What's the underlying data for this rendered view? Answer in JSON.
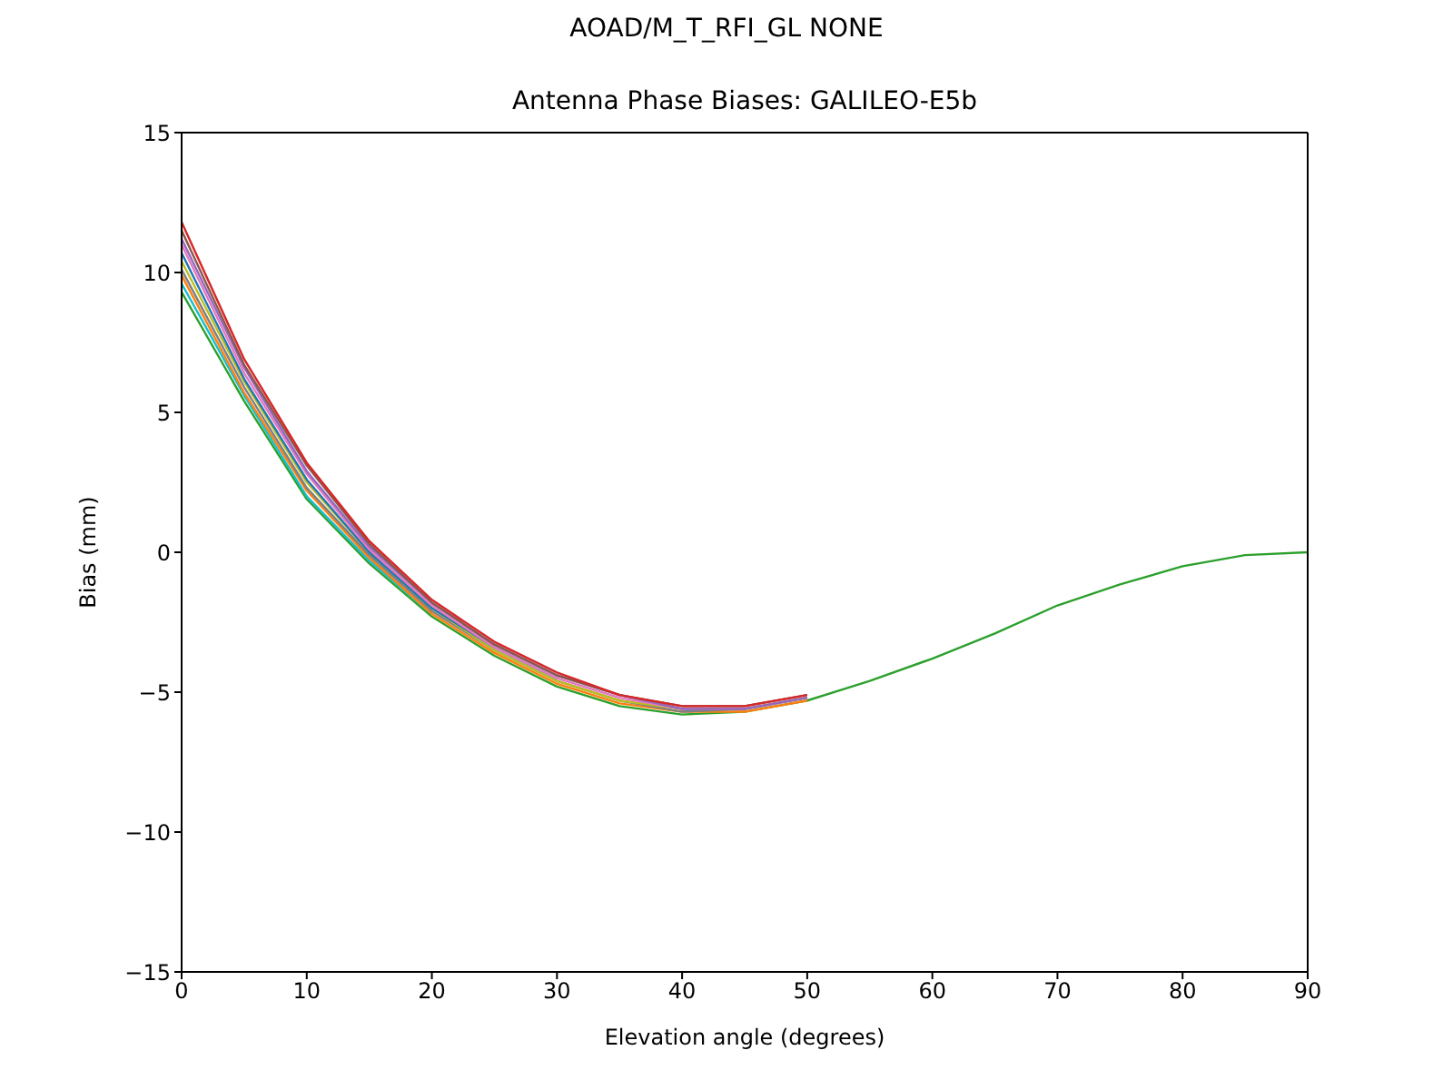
{
  "chart_data": {
    "type": "line",
    "title": "AOAD/M_T_RFI_GL NONE",
    "subtitle": "Antenna Phase Biases: GALILEO-E5b",
    "xlabel": "Elevation angle (degrees)",
    "ylabel": "Bias (mm)",
    "x": [
      0,
      5,
      10,
      15,
      20,
      25,
      30,
      35,
      40,
      45,
      50,
      55,
      60,
      65,
      70,
      75,
      80,
      85,
      90
    ],
    "series": [
      {
        "color": "#2ca02c",
        "values": [
          9.3,
          5.4,
          1.9,
          -0.4,
          -2.3,
          -3.7,
          -4.8,
          -5.5,
          -5.8,
          -5.7,
          -5.3,
          -4.6,
          -3.8,
          -2.9,
          -1.9,
          -1.15,
          -0.5,
          -0.1,
          0
        ]
      },
      {
        "color": "#17becf",
        "values": [
          9.6,
          5.6,
          2.0,
          -0.3,
          -2.2,
          null,
          null,
          null,
          null,
          null,
          null,
          null,
          null,
          null,
          null,
          null,
          null,
          null,
          null
        ]
      },
      {
        "color": "#ff7f0e",
        "values": [
          9.9,
          5.7,
          2.2,
          -0.2,
          -2.2,
          -3.6,
          -4.7,
          -5.4,
          -5.7,
          -5.7,
          -5.3,
          null,
          null,
          null,
          null,
          null,
          null,
          null,
          null
        ]
      },
      {
        "color": "#7f7f7f",
        "values": [
          10.1,
          5.9,
          2.3,
          -0.1,
          -2.1,
          -3.5,
          -4.6,
          -5.3,
          -5.7,
          -5.6,
          -5.2,
          null,
          null,
          null,
          null,
          null,
          null,
          null,
          null
        ]
      },
      {
        "color": "#bcbd22",
        "values": [
          10.4,
          6.1,
          2.5,
          0.0,
          -2.0,
          -3.5,
          -4.6,
          -5.3,
          -5.6,
          -5.6,
          -5.2,
          null,
          null,
          null,
          null,
          null,
          null,
          null,
          null
        ]
      },
      {
        "color": "#1f77b4",
        "values": [
          10.7,
          6.2,
          2.6,
          0.0,
          -2.0,
          -3.4,
          -4.5,
          null,
          null,
          null,
          null,
          null,
          null,
          null,
          null,
          null,
          null,
          null,
          null
        ]
      },
      {
        "color": "#e377c2",
        "values": [
          11.0,
          6.4,
          2.8,
          0.1,
          -1.9,
          -3.4,
          -4.5,
          -5.2,
          -5.6,
          -5.6,
          -5.2,
          null,
          null,
          null,
          null,
          null,
          null,
          null,
          null
        ]
      },
      {
        "color": "#9467bd",
        "values": [
          11.2,
          6.6,
          2.9,
          0.2,
          -1.8,
          -3.3,
          -4.4,
          -5.1,
          -5.6,
          -5.6,
          -5.2,
          null,
          null,
          null,
          null,
          null,
          null,
          null,
          null
        ]
      },
      {
        "color": "#8c564b",
        "values": [
          11.5,
          6.7,
          3.1,
          0.3,
          -1.8,
          -3.3,
          -4.4,
          -5.1,
          -5.5,
          -5.5,
          -5.1,
          null,
          null,
          null,
          null,
          null,
          null,
          null,
          null
        ]
      },
      {
        "color": "#d62728",
        "values": [
          11.8,
          6.9,
          3.2,
          0.4,
          -1.7,
          -3.2,
          -4.3,
          -5.1,
          -5.5,
          -5.5,
          -5.1,
          null,
          null,
          null,
          null,
          null,
          null,
          null,
          null
        ]
      }
    ],
    "xlim": [
      0,
      90
    ],
    "xticks": [
      0,
      10,
      20,
      30,
      40,
      50,
      60,
      70,
      80,
      90
    ],
    "ylim": [
      -15,
      15
    ],
    "yticks": [
      {
        "value": -15,
        "label": "−15"
      },
      {
        "value": -10,
        "label": "−10"
      },
      {
        "value": -5,
        "label": "−5"
      },
      0,
      5,
      10,
      15
    ],
    "grid": false,
    "legend": false,
    "marker": "none",
    "line_style": "solid"
  }
}
